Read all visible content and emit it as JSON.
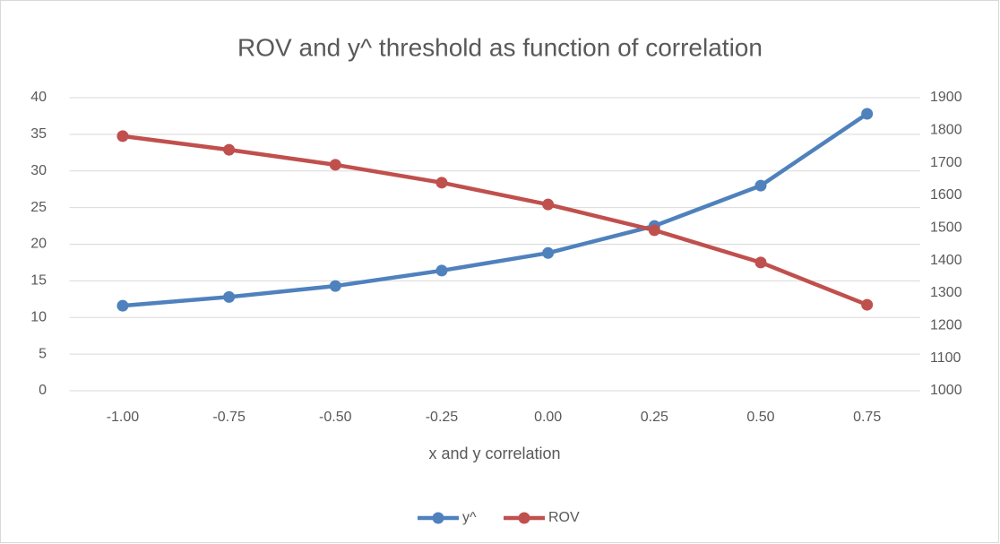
{
  "chart_data": {
    "type": "line",
    "title": "ROV and y^ threshold as function of correlation",
    "x_label": "x and y correlation",
    "categories": [
      "-1.00",
      "-0.75",
      "-0.50",
      "-0.25",
      "0.00",
      "0.25",
      "0.50",
      "0.75"
    ],
    "series": [
      {
        "name": "y^",
        "color": "#4f81bd",
        "values": [
          11.6,
          12.8,
          14.3,
          16.4,
          18.8,
          22.5,
          28.0,
          37.8
        ]
      },
      {
        "name": "ROV",
        "color": "#c0504d",
        "axis": "y2",
        "values": [
          1782,
          1740,
          1694,
          1639,
          1572,
          1493,
          1394,
          1264
        ]
      }
    ],
    "ylim": [
      0,
      40
    ],
    "yticks": [
      0,
      5,
      10,
      15,
      20,
      25,
      30,
      35,
      40
    ],
    "y2lim": [
      1000,
      1900
    ],
    "y2ticks": [
      1000,
      1100,
      1200,
      1300,
      1400,
      1500,
      1600,
      1700,
      1800,
      1900
    ],
    "grid": true,
    "legend": "bottom"
  }
}
